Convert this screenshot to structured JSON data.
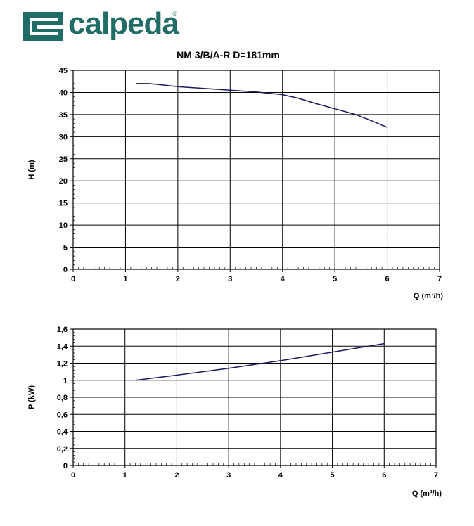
{
  "brand": {
    "name": "calpeda",
    "reg": "®"
  },
  "chart_data": [
    {
      "type": "line",
      "title": "NM 3/B/A-R D=181mm",
      "xlabel": "Q (m³/h)",
      "ylabel": "H (m)",
      "xlim": [
        0,
        7
      ],
      "ylim": [
        0,
        45
      ],
      "xticks": [
        0,
        1,
        2,
        3,
        4,
        5,
        6,
        7
      ],
      "yticks": [
        0,
        5,
        10,
        15,
        20,
        25,
        30,
        35,
        40,
        45
      ],
      "ytick_labels": [
        "0",
        "5",
        "10",
        "15",
        "20",
        "25",
        "30",
        "35",
        "40",
        "45"
      ],
      "grid": true,
      "color": "#1a1a5e",
      "series": [
        {
          "x": [
            1.2,
            1.45,
            1.7,
            2.0,
            2.5,
            3.0,
            3.5,
            4.0,
            4.3,
            4.6,
            5.0,
            5.4,
            5.7,
            6.0
          ],
          "y": [
            42.0,
            42.0,
            41.7,
            41.3,
            40.9,
            40.5,
            40.1,
            39.5,
            38.7,
            37.6,
            36.3,
            35.0,
            33.6,
            32.1
          ]
        }
      ]
    },
    {
      "type": "line",
      "title": "",
      "xlabel": "Q (m³/h)",
      "ylabel": "P (kW)",
      "xlim": [
        0,
        7
      ],
      "ylim": [
        0,
        1.6
      ],
      "xticks": [
        0,
        1,
        2,
        3,
        4,
        5,
        6,
        7
      ],
      "yticks": [
        0,
        0.2,
        0.4,
        0.6,
        0.8,
        1,
        1.2,
        1.4,
        1.6
      ],
      "ytick_labels": [
        "0",
        "0,2",
        "0,4",
        "0,6",
        "0,8",
        "1",
        "1,2",
        "1,4",
        "1,6"
      ],
      "grid": true,
      "color": "#1a1a5e",
      "series": [
        {
          "x": [
            1.2,
            2.0,
            3.0,
            4.0,
            5.0,
            6.0
          ],
          "y": [
            1.0,
            1.06,
            1.14,
            1.23,
            1.33,
            1.43
          ]
        }
      ]
    }
  ]
}
